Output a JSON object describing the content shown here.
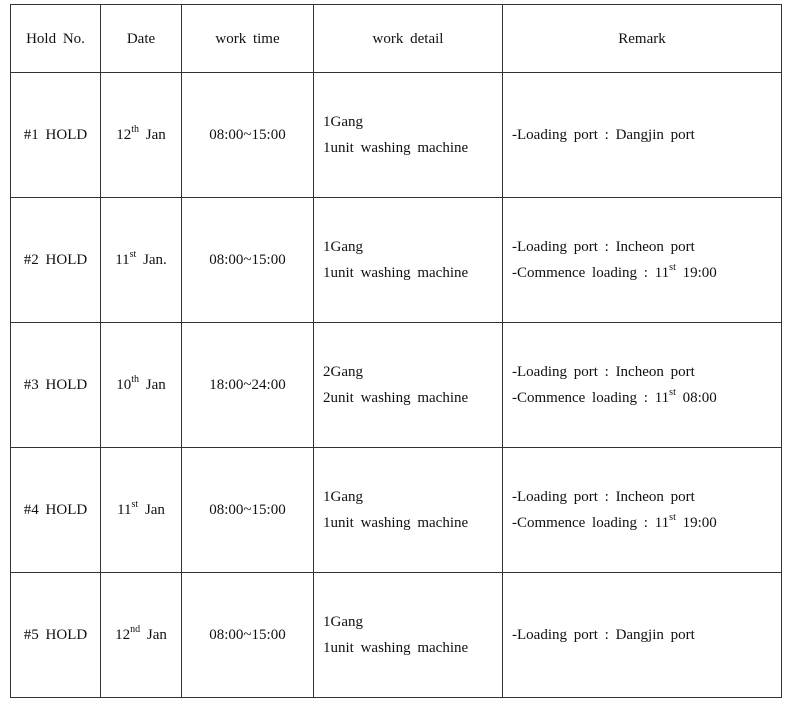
{
  "headers": [
    "Hold No.",
    "Date",
    "work time",
    "work detail",
    "Remark"
  ],
  "rows": [
    {
      "hold": "#1 HOLD",
      "date": {
        "num": "12",
        "sup": "th",
        "rest": " Jan"
      },
      "time": "08:00~15:00",
      "detail": [
        "1Gang",
        "1unit washing machine"
      ],
      "remark": [
        {
          "pre": "-Loading port : Dangjin port"
        }
      ]
    },
    {
      "hold": "#2 HOLD",
      "date": {
        "num": "11",
        "sup": "st",
        "rest": " Jan."
      },
      "time": "08:00~15:00",
      "detail": [
        "1Gang",
        "1unit washing machine"
      ],
      "remark": [
        {
          "pre": "-Loading port : Incheon port"
        },
        {
          "pre": "-Commence loading : 11",
          "sup": "st",
          "post": " 19:00"
        }
      ]
    },
    {
      "hold": "#3 HOLD",
      "date": {
        "num": "10",
        "sup": "th",
        "rest": " Jan"
      },
      "time": "18:00~24:00",
      "detail": [
        "2Gang",
        "2unit washing machine"
      ],
      "remark": [
        {
          "pre": "-Loading port : Incheon port"
        },
        {
          "pre": "-Commence loading : 11",
          "sup": "st",
          "post": " 08:00"
        }
      ]
    },
    {
      "hold": "#4 HOLD",
      "date": {
        "num": "11",
        "sup": "st",
        "rest": " Jan"
      },
      "time": "08:00~15:00",
      "detail": [
        "1Gang",
        "1unit washing machine"
      ],
      "remark": [
        {
          "pre": "-Loading port : Incheon port"
        },
        {
          "pre": "-Commence loading : 11",
          "sup": "st",
          "post": " 19:00"
        }
      ]
    },
    {
      "hold": "#5 HOLD",
      "date": {
        "num": "12",
        "sup": "nd",
        "rest": " Jan"
      },
      "time": "08:00~15:00",
      "detail": [
        "1Gang",
        "1unit washing machine"
      ],
      "remark": [
        {
          "pre": "-Loading port : Dangjin port"
        }
      ]
    }
  ]
}
